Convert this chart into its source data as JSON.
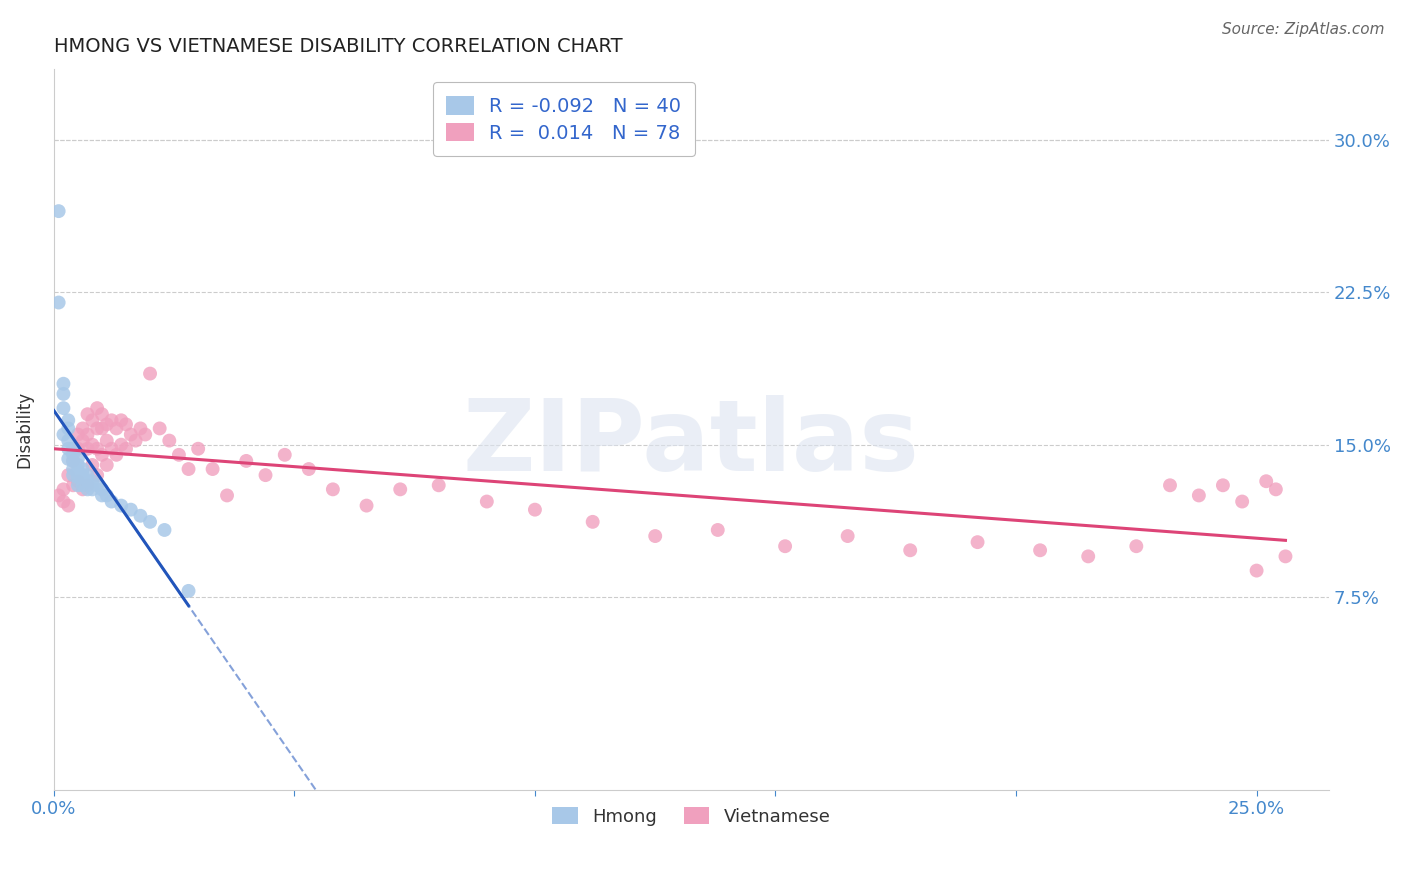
{
  "title": "HMONG VS VIETNAMESE DISABILITY CORRELATION CHART",
  "source": "Source: ZipAtlas.com",
  "ylabel": "Disability",
  "hmong_R": -0.092,
  "hmong_N": 40,
  "viet_R": 0.014,
  "viet_N": 78,
  "hmong_color": "#a8c8e8",
  "viet_color": "#f0a0be",
  "hmong_line_color": "#2255bb",
  "viet_line_color": "#dd4477",
  "watermark": "ZIPatlas",
  "xlim": [
    0.0,
    0.265
  ],
  "ylim": [
    -0.02,
    0.335
  ],
  "hmong_x": [
    0.001,
    0.001,
    0.002,
    0.002,
    0.002,
    0.002,
    0.003,
    0.003,
    0.003,
    0.003,
    0.003,
    0.004,
    0.004,
    0.004,
    0.004,
    0.004,
    0.005,
    0.005,
    0.005,
    0.005,
    0.005,
    0.006,
    0.006,
    0.006,
    0.007,
    0.007,
    0.007,
    0.008,
    0.008,
    0.009,
    0.01,
    0.01,
    0.011,
    0.012,
    0.014,
    0.016,
    0.018,
    0.02,
    0.023,
    0.028
  ],
  "hmong_y": [
    0.265,
    0.22,
    0.18,
    0.175,
    0.168,
    0.155,
    0.162,
    0.158,
    0.152,
    0.148,
    0.143,
    0.148,
    0.145,
    0.142,
    0.138,
    0.135,
    0.143,
    0.14,
    0.137,
    0.134,
    0.13,
    0.138,
    0.135,
    0.13,
    0.135,
    0.132,
    0.128,
    0.132,
    0.128,
    0.13,
    0.128,
    0.125,
    0.125,
    0.122,
    0.12,
    0.118,
    0.115,
    0.112,
    0.108,
    0.078
  ],
  "viet_x": [
    0.001,
    0.002,
    0.002,
    0.003,
    0.003,
    0.004,
    0.004,
    0.005,
    0.005,
    0.005,
    0.006,
    0.006,
    0.006,
    0.007,
    0.007,
    0.007,
    0.007,
    0.008,
    0.008,
    0.008,
    0.009,
    0.009,
    0.009,
    0.009,
    0.01,
    0.01,
    0.01,
    0.011,
    0.011,
    0.011,
    0.012,
    0.012,
    0.013,
    0.013,
    0.014,
    0.014,
    0.015,
    0.015,
    0.016,
    0.017,
    0.018,
    0.019,
    0.02,
    0.022,
    0.024,
    0.026,
    0.028,
    0.03,
    0.033,
    0.036,
    0.04,
    0.044,
    0.048,
    0.053,
    0.058,
    0.065,
    0.072,
    0.08,
    0.09,
    0.1,
    0.112,
    0.125,
    0.138,
    0.152,
    0.165,
    0.178,
    0.192,
    0.205,
    0.215,
    0.225,
    0.232,
    0.238,
    0.243,
    0.247,
    0.25,
    0.252,
    0.254,
    0.256
  ],
  "viet_y": [
    0.125,
    0.128,
    0.122,
    0.135,
    0.12,
    0.142,
    0.13,
    0.155,
    0.148,
    0.132,
    0.158,
    0.152,
    0.128,
    0.165,
    0.155,
    0.148,
    0.13,
    0.162,
    0.15,
    0.14,
    0.168,
    0.158,
    0.148,
    0.135,
    0.165,
    0.158,
    0.145,
    0.16,
    0.152,
    0.14,
    0.162,
    0.148,
    0.158,
    0.145,
    0.162,
    0.15,
    0.16,
    0.148,
    0.155,
    0.152,
    0.158,
    0.155,
    0.185,
    0.158,
    0.152,
    0.145,
    0.138,
    0.148,
    0.138,
    0.125,
    0.142,
    0.135,
    0.145,
    0.138,
    0.128,
    0.12,
    0.128,
    0.13,
    0.122,
    0.118,
    0.112,
    0.105,
    0.108,
    0.1,
    0.105,
    0.098,
    0.102,
    0.098,
    0.095,
    0.1,
    0.13,
    0.125,
    0.13,
    0.122,
    0.088,
    0.132,
    0.128,
    0.095
  ]
}
